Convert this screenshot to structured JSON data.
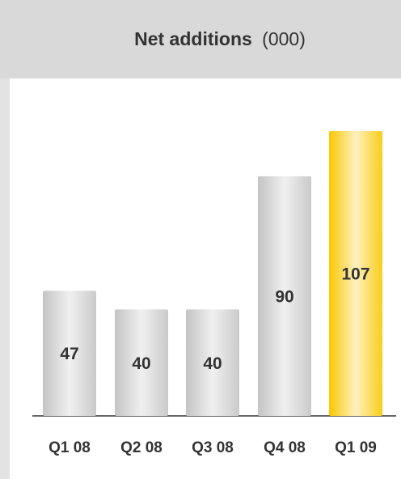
{
  "chart_data": {
    "type": "bar",
    "title": "Net additions",
    "unit": "(000)",
    "categories": [
      "Q1 08",
      "Q2 08",
      "Q3 08",
      "Q4 08",
      "Q1 09"
    ],
    "values": [
      47,
      40,
      40,
      90,
      107
    ],
    "colors": [
      "#c4c4c4",
      "#c4c4c4",
      "#c4c4c4",
      "#c4c4c4",
      "#f9c800"
    ]
  }
}
